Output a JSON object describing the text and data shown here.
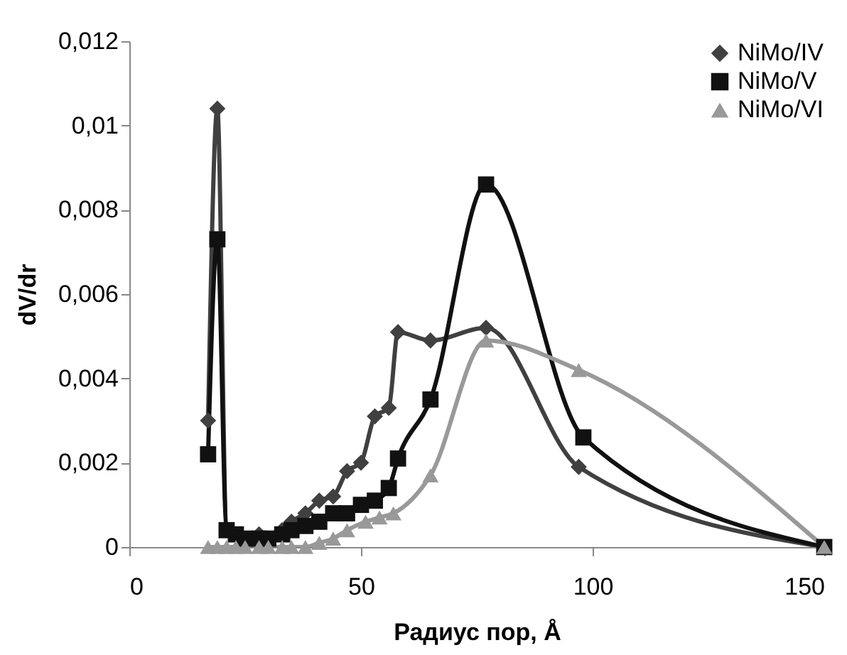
{
  "chart_data": {
    "type": "line",
    "xlabel": "Радиус пор, Å",
    "ylabel": "dV/dr",
    "xlim": [
      0,
      150
    ],
    "xticks": [
      0,
      50,
      100,
      150
    ],
    "ylim": [
      0,
      0.012
    ],
    "yticks": [
      {
        "value": 0,
        "label": "0"
      },
      {
        "value": 0.002,
        "label": "0,002"
      },
      {
        "value": 0.004,
        "label": "0,004"
      },
      {
        "value": 0.006,
        "label": "0,006"
      },
      {
        "value": 0.008,
        "label": "0,008"
      },
      {
        "value": 0.01,
        "label": "0,01"
      },
      {
        "value": 0.012,
        "label": "0,012"
      }
    ],
    "grid": false,
    "legend": "top right",
    "line_style": "solid",
    "series": [
      {
        "name": "NiMo/IV",
        "color": "#404040",
        "marker": "diamond",
        "x": [
          17,
          19,
          21,
          23,
          25,
          28,
          30,
          33,
          35,
          38,
          41,
          44,
          47,
          50,
          53,
          56,
          58,
          65,
          77,
          97,
          150
        ],
        "values": [
          0.003,
          0.0104,
          0.0004,
          0.0003,
          0.0002,
          0.0003,
          0.0002,
          0.0004,
          0.0006,
          0.0008,
          0.0011,
          0.0012,
          0.0018,
          0.002,
          0.0031,
          0.0033,
          0.0051,
          0.0049,
          0.0052,
          0.0019,
          0
        ]
      },
      {
        "name": "NiMo/V",
        "color": "#111111",
        "marker": "square",
        "x": [
          17,
          19,
          21,
          23,
          25,
          28,
          30,
          33,
          35,
          38,
          41,
          44,
          47,
          50,
          53,
          56,
          58,
          65,
          77,
          98,
          150
        ],
        "values": [
          0.0022,
          0.0073,
          0.0004,
          0.0003,
          0.0002,
          0.0002,
          0.0002,
          0.0003,
          0.0004,
          0.0005,
          0.0006,
          0.0008,
          0.0008,
          0.001,
          0.0011,
          0.0014,
          0.0021,
          0.0035,
          0.0086,
          0.0026,
          0
        ]
      },
      {
        "name": "NiMo/VI",
        "color": "#999999",
        "marker": "triangle",
        "x": [
          17,
          19,
          21,
          23,
          25,
          28,
          30,
          33,
          35,
          38,
          41,
          44,
          47,
          51,
          54,
          57,
          65,
          77,
          97,
          150
        ],
        "values": [
          0,
          0,
          0,
          0,
          0,
          0,
          0,
          0,
          0,
          0,
          0.0001,
          0.0002,
          0.0004,
          0.0006,
          0.0007,
          0.0008,
          0.0017,
          0.0049,
          0.0042,
          0
        ]
      }
    ]
  }
}
